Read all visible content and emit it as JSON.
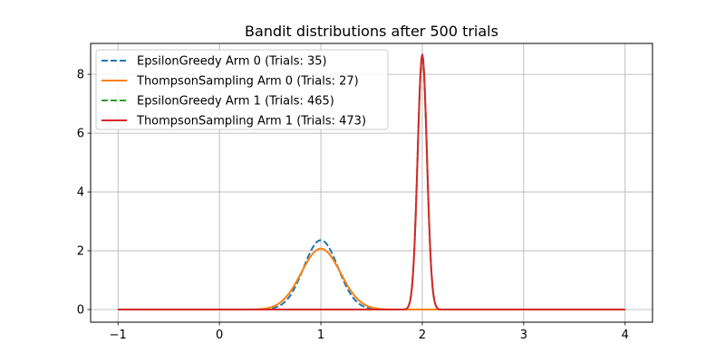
{
  "chart_data": {
    "type": "line",
    "title": "Bandit distributions after 500 trials",
    "xlabel": "",
    "ylabel": "",
    "xlim": [
      -1.27,
      4.27
    ],
    "ylim": [
      -0.43,
      9.05
    ],
    "grid": true,
    "legend_position": "top-left",
    "x_ticks": [
      -1,
      0,
      1,
      2,
      3,
      4
    ],
    "x_tick_labels": [
      "−1",
      "0",
      "1",
      "2",
      "3",
      "4"
    ],
    "y_ticks": [
      0,
      2,
      4,
      6,
      8
    ],
    "y_tick_labels": [
      "0",
      "2",
      "4",
      "6",
      "8"
    ],
    "x_range": [
      -1,
      4
    ],
    "series": [
      {
        "name": "EpsilonGreedy Arm 0 (Trials: 35)",
        "distribution": "normal",
        "mean": 1.0,
        "peak": 2.36,
        "color": "#1f77b4",
        "dash": true
      },
      {
        "name": "ThompsonSampling Arm 0 (Trials: 27)",
        "distribution": "normal",
        "mean": 1.0,
        "peak": 2.07,
        "color": "#ff7f0e",
        "dash": false
      },
      {
        "name": "EpsilonGreedy Arm 1 (Trials: 465)",
        "distribution": "normal",
        "mean": 2.0,
        "peak": 8.6,
        "color": "#2ca02c",
        "dash": true
      },
      {
        "name": "ThompsonSampling Arm 1 (Trials: 473)",
        "distribution": "normal",
        "mean": 2.0,
        "peak": 8.67,
        "color": "#d62728",
        "dash": false
      }
    ]
  }
}
